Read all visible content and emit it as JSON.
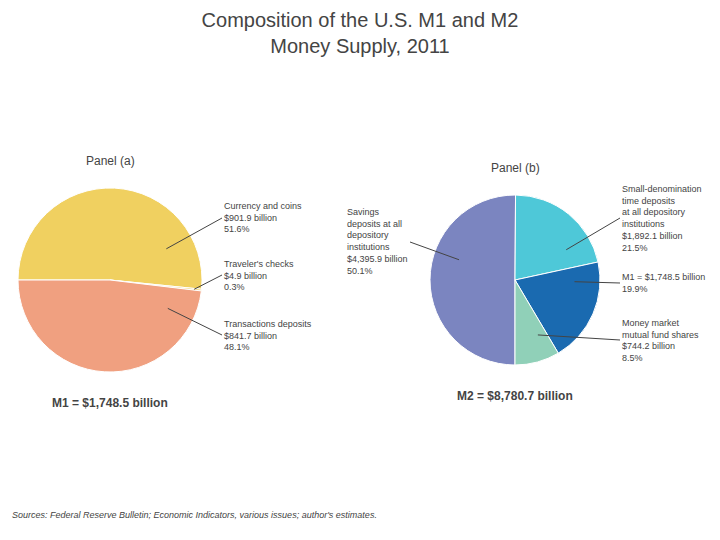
{
  "chart_data": [
    {
      "type": "pie",
      "title": "Composition of the U.S. M1 and M2\nMoney Supply, 2011",
      "subtitle": "Panel (a)",
      "labels": [
        "Currency and coins\n$901.9 billion\n51.6%",
        "Traveler's checks\n$4.9 billion\n0.3%",
        "Transactions deposits\n$841.7 billion\n48.1%"
      ],
      "values": [
        51.6,
        0.3,
        48.1
      ],
      "colors": [
        "#f0d060",
        "#f0d060",
        "#f0a080"
      ],
      "annotations": [
        "M1 = $1,748.5 billion"
      ]
    },
    {
      "type": "pie",
      "subtitle": "Panel (b)",
      "labels": [
        "Savings\ndeposits at all\ndepository\ninstitutions\n$4,395.9 billion\n50.1%",
        "Small-denomination\ntime deposits\nat all depository\ninstitutions\n$1,892.1 billion\n21.5%",
        "M1 = $1,748.5 billion\n19.9%",
        "Money market\nmutual fund shares\n$744.2 billion\n8.5%"
      ],
      "values": [
        50.1,
        21.5,
        19.9,
        8.5
      ],
      "colors": [
        "#7b85c0",
        "#4ec8d8",
        "#1a6ab0",
        "#90d0b8"
      ],
      "annotations": [
        "M2 = $8,780.7 billion",
        "Sources: Federal Reserve Bulletin; Economic Indicators, various issues; author's estimates."
      ]
    }
  ]
}
